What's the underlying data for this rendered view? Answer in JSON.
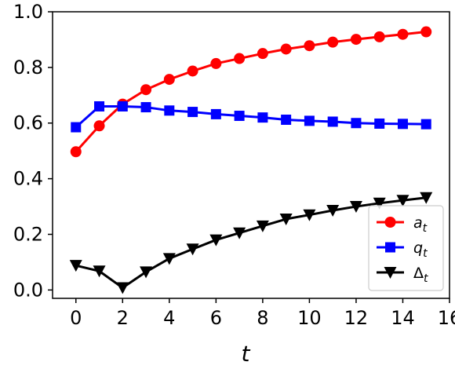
{
  "chart_data": {
    "type": "line",
    "title": "",
    "xlabel": "t",
    "ylabel": "",
    "xlim": [
      -1,
      16
    ],
    "ylim": [
      -0.03,
      1.0
    ],
    "xticks": [
      0,
      2,
      4,
      6,
      8,
      10,
      12,
      14,
      16
    ],
    "xtick_labels": [
      "0",
      "2",
      "4",
      "6",
      "8",
      "10",
      "12",
      "14",
      "16"
    ],
    "yticks": [
      0.0,
      0.2,
      0.4,
      0.6,
      0.8,
      1.0
    ],
    "ytick_labels": [
      "0.0",
      "0.2",
      "0.4",
      "0.6",
      "0.8",
      "1.0"
    ],
    "grid": false,
    "legend_position": "lower right",
    "x": [
      0,
      1,
      2,
      3,
      4,
      5,
      6,
      7,
      8,
      9,
      10,
      11,
      12,
      13,
      14,
      15
    ],
    "series": [
      {
        "name": "a",
        "name_subscript": "t",
        "color": "#ff0000",
        "marker": "circle",
        "values": [
          0.497,
          0.59,
          0.668,
          0.72,
          0.757,
          0.787,
          0.814,
          0.832,
          0.85,
          0.866,
          0.878,
          0.891,
          0.901,
          0.91,
          0.919,
          0.928
        ]
      },
      {
        "name": "q",
        "name_subscript": "t",
        "color": "#0000ff",
        "marker": "square",
        "values": [
          0.585,
          0.66,
          0.66,
          0.657,
          0.645,
          0.64,
          0.632,
          0.626,
          0.62,
          0.612,
          0.608,
          0.605,
          0.6,
          0.598,
          0.597,
          0.596
        ]
      },
      {
        "name": "Δ",
        "name_subscript": "t",
        "color": "#000000",
        "marker": "triangle-down",
        "values": [
          0.088,
          0.068,
          0.008,
          0.065,
          0.113,
          0.147,
          0.18,
          0.205,
          0.23,
          0.255,
          0.27,
          0.286,
          0.3,
          0.312,
          0.322,
          0.332
        ]
      }
    ]
  }
}
